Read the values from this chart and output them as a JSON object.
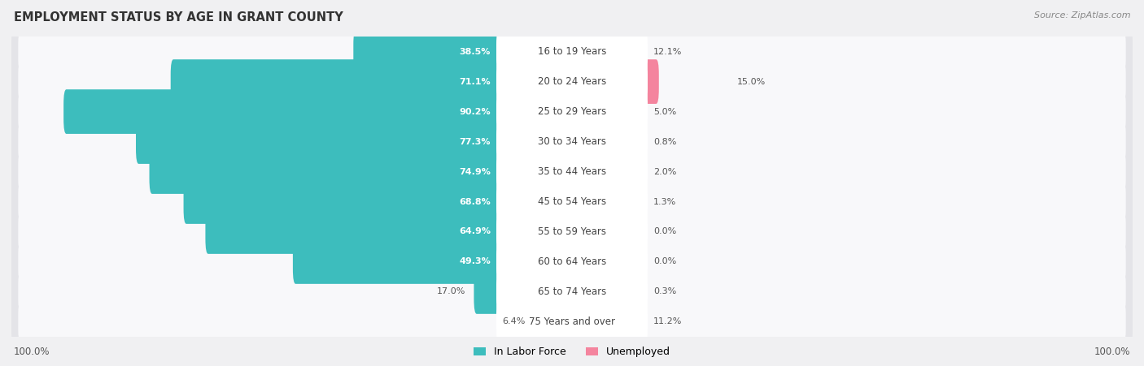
{
  "title": "EMPLOYMENT STATUS BY AGE IN GRANT COUNTY",
  "source": "Source: ZipAtlas.com",
  "categories": [
    "16 to 19 Years",
    "20 to 24 Years",
    "25 to 29 Years",
    "30 to 34 Years",
    "35 to 44 Years",
    "45 to 54 Years",
    "55 to 59 Years",
    "60 to 64 Years",
    "65 to 74 Years",
    "75 Years and over"
  ],
  "labor_force": [
    38.5,
    71.1,
    90.2,
    77.3,
    74.9,
    68.8,
    64.9,
    49.3,
    17.0,
    6.4
  ],
  "unemployed": [
    12.1,
    15.0,
    5.0,
    0.8,
    2.0,
    1.3,
    0.0,
    0.0,
    0.3,
    11.2
  ],
  "labor_color": "#3dbdbd",
  "unemployed_color": "#f4849e",
  "bg_color": "#f0f0f2",
  "row_bg_color": "#e4e4e8",
  "row_white_bg": "#f8f8fa",
  "center_label_bg": "#ffffff",
  "center_label_color": "#444444",
  "labor_text_color": "#ffffff",
  "value_text_color": "#555555",
  "axis_label_left": "100.0%",
  "axis_label_right": "100.0%",
  "max_value": 100.0,
  "legend_labor": "In Labor Force",
  "legend_unemployed": "Unemployed",
  "title_color": "#333333",
  "source_color": "#888888"
}
